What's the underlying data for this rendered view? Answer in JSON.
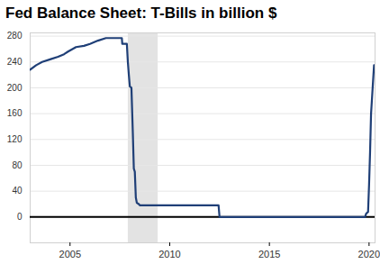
{
  "chart_data": {
    "type": "line",
    "title": "Fed Balance Sheet: T-Bills in billion $",
    "series": [
      {
        "name": "T-Bills",
        "color": "#1f3f77",
        "x": [
          2003.0,
          2003.3,
          2003.6,
          2004.0,
          2004.4,
          2004.7,
          2004.9,
          2005.3,
          2005.7,
          2006.0,
          2006.4,
          2006.8,
          2007.6,
          2007.62,
          2007.85,
          2007.9,
          2007.95,
          2008.0,
          2008.08,
          2008.15,
          2008.2,
          2008.25,
          2008.3,
          2008.35,
          2008.45,
          2008.5,
          2012.45,
          2012.5,
          2019.8,
          2019.85,
          2019.95,
          2020.0,
          2020.05,
          2020.1,
          2020.12,
          2020.18,
          2020.25
        ],
        "values": [
          228,
          235,
          240,
          244,
          248,
          252,
          256,
          263,
          265,
          268,
          273,
          277,
          277,
          268,
          268,
          240,
          220,
          202,
          200,
          130,
          75,
          70,
          30,
          22,
          20,
          18,
          18,
          0,
          0,
          5,
          8,
          50,
          100,
          160,
          170,
          200,
          235
        ]
      }
    ],
    "recession": [
      2007.92,
      2009.42
    ],
    "baseline": 0,
    "xlim": [
      2003.0,
      2020.3
    ],
    "xticks": [
      2005,
      2010,
      2015,
      2020
    ],
    "ylim": [
      -40,
      285
    ],
    "yticks": [
      0,
      40,
      80,
      120,
      160,
      200,
      240,
      280
    ],
    "grid": true
  }
}
